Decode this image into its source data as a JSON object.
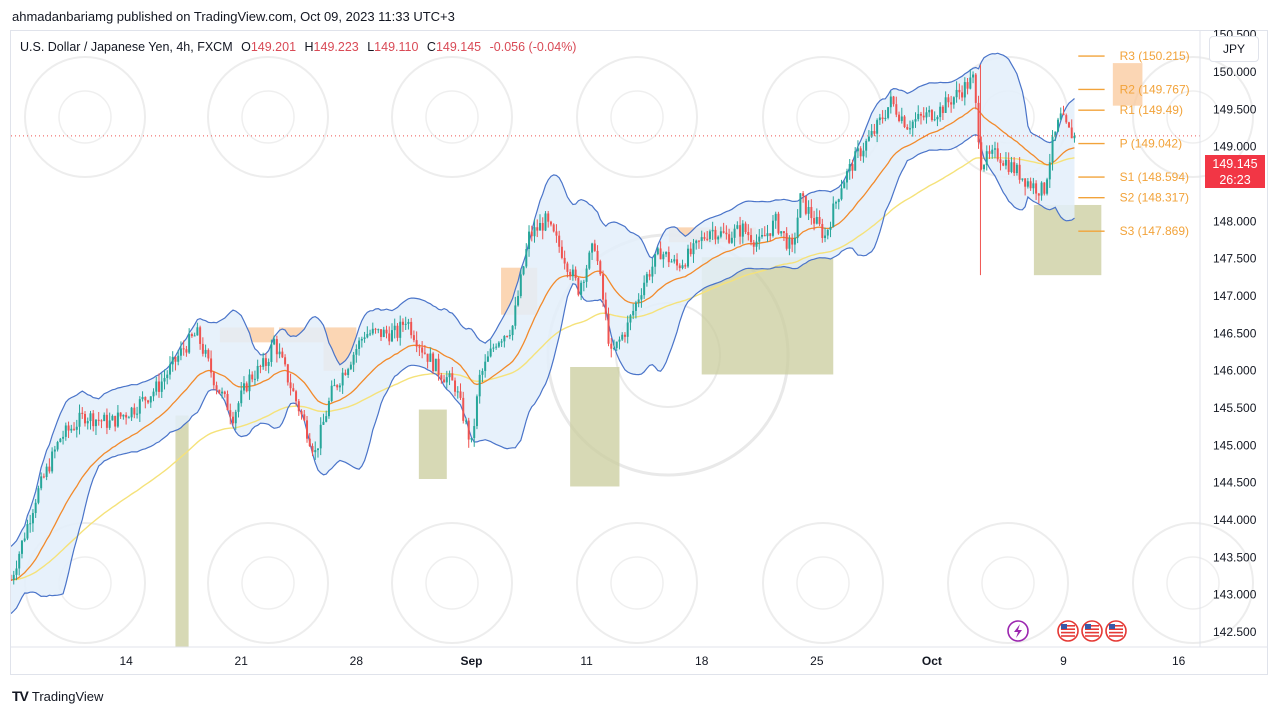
{
  "header": {
    "published_line": "ahmadanbariamg published on TradingView.com, Oct 09, 2023 11:33 UTC+3"
  },
  "legend": {
    "symbol": "U.S. Dollar / Japanese Yen, 4h, FXCM",
    "open_label": "O",
    "open": "149.201",
    "high_label": "H",
    "high": "149.223",
    "low_label": "L",
    "low": "149.110",
    "close_label": "C",
    "close": "149.145",
    "change": "-0.056 (-0.04%)"
  },
  "currency_button": "JPY",
  "price_tag": {
    "price": "149.145",
    "countdown": "26:23"
  },
  "footer": {
    "brand": "TradingView",
    "logo": "TV"
  },
  "colors": {
    "up": "#26a69a",
    "down": "#ef5350",
    "band": "#4a74c9",
    "band_fill": "#e3effa",
    "ema_orange": "#f28a2b",
    "ema_yellow": "#f5e27a",
    "pivot": "#f2a33a",
    "supply": "#f9c89b",
    "demand": "#c9cc9c",
    "price_tag": "#f23645"
  },
  "chart_data": {
    "type": "candlestick",
    "y_ticks": [
      "150.500",
      "150.000",
      "149.500",
      "149.000",
      "148.500",
      "148.000",
      "147.500",
      "147.000",
      "146.500",
      "146.000",
      "145.500",
      "145.000",
      "144.500",
      "144.000",
      "143.500",
      "143.000",
      "142.500"
    ],
    "x_ticks": [
      {
        "label": "14",
        "day": 14,
        "bold": false
      },
      {
        "label": "21",
        "day": 21,
        "bold": false
      },
      {
        "label": "28",
        "day": 28,
        "bold": false
      },
      {
        "label": "Sep",
        "day": 35,
        "bold": true
      },
      {
        "label": "11",
        "day": 42,
        "bold": false
      },
      {
        "label": "18",
        "day": 49,
        "bold": false
      },
      {
        "label": "25",
        "day": 56,
        "bold": false
      },
      {
        "label": "Oct",
        "day": 63,
        "bold": true
      },
      {
        "label": "9",
        "day": 71,
        "bold": false
      },
      {
        "label": "16",
        "day": 78,
        "bold": false
      }
    ],
    "ylim": [
      142.3,
      150.55
    ],
    "pivots": [
      {
        "label": "R3 (150.215)",
        "value": 150.215
      },
      {
        "label": "R2 (149.767)",
        "value": 149.767
      },
      {
        "label": "R1 (149.49)",
        "value": 149.49
      },
      {
        "label": "P (149.042)",
        "value": 149.042
      },
      {
        "label": "S1 (148.594)",
        "value": 148.594
      },
      {
        "label": "S2 (148.317)",
        "value": 148.317
      },
      {
        "label": "S3 (147.869)",
        "value": 147.869
      }
    ],
    "last_price": 149.145,
    "price_path": [
      [
        7.0,
        143.2
      ],
      [
        8.5,
        144.3
      ],
      [
        10.0,
        145.1
      ],
      [
        11.5,
        145.4
      ],
      [
        13.0,
        145.3
      ],
      [
        14.5,
        145.5
      ],
      [
        16.0,
        145.8
      ],
      [
        17.5,
        146.3
      ],
      [
        18.3,
        146.5
      ],
      [
        19.5,
        145.8
      ],
      [
        20.5,
        145.4
      ],
      [
        21.5,
        145.9
      ],
      [
        22.5,
        146.1
      ],
      [
        23.0,
        146.4
      ],
      [
        24.0,
        145.8
      ],
      [
        25.5,
        144.9
      ],
      [
        26.5,
        145.7
      ],
      [
        27.5,
        146.1
      ],
      [
        28.5,
        146.5
      ],
      [
        29.5,
        146.5
      ],
      [
        30.5,
        146.5
      ],
      [
        31.0,
        146.7
      ],
      [
        32.0,
        146.3
      ],
      [
        33.0,
        146.0
      ],
      [
        34.0,
        145.8
      ],
      [
        35.0,
        145.0
      ],
      [
        35.5,
        145.9
      ],
      [
        36.5,
        146.4
      ],
      [
        37.5,
        146.6
      ],
      [
        38.5,
        147.8
      ],
      [
        39.5,
        148.0
      ],
      [
        40.5,
        147.6
      ],
      [
        41.5,
        147.1
      ],
      [
        42.5,
        147.7
      ],
      [
        43.5,
        146.2
      ],
      [
        44.5,
        146.6
      ],
      [
        45.5,
        147.2
      ],
      [
        46.5,
        147.6
      ],
      [
        47.5,
        147.4
      ],
      [
        48.5,
        147.6
      ],
      [
        49.5,
        147.9
      ],
      [
        50.5,
        147.8
      ],
      [
        51.5,
        147.9
      ],
      [
        52.5,
        147.7
      ],
      [
        53.5,
        148.0
      ],
      [
        54.5,
        147.6
      ],
      [
        55.0,
        148.3
      ],
      [
        56.5,
        147.8
      ],
      [
        57.5,
        148.5
      ],
      [
        58.5,
        148.9
      ],
      [
        59.5,
        149.2
      ],
      [
        60.5,
        149.6
      ],
      [
        61.5,
        149.3
      ],
      [
        62.5,
        149.4
      ],
      [
        63.5,
        149.5
      ],
      [
        64.5,
        149.7
      ],
      [
        65.5,
        149.9
      ],
      [
        66.0,
        148.8
      ],
      [
        67.0,
        148.9
      ],
      [
        68.0,
        148.7
      ],
      [
        69.0,
        148.5
      ],
      [
        69.8,
        148.4
      ],
      [
        70.3,
        149.0
      ],
      [
        70.8,
        149.4
      ],
      [
        71.3,
        149.2
      ],
      [
        71.7,
        149.15
      ]
    ],
    "zones": [
      {
        "type": "supply",
        "x": [
          19.7,
          23.0
        ],
        "y": [
          146.38,
          146.58
        ]
      },
      {
        "type": "supply",
        "x": [
          23.3,
          26.0
        ],
        "y": [
          146.38,
          146.58
        ]
      },
      {
        "type": "supply",
        "x": [
          26.0,
          28.0
        ],
        "y": [
          146.0,
          146.58
        ]
      },
      {
        "type": "supply",
        "x": [
          36.8,
          39.0
        ],
        "y": [
          146.75,
          147.38
        ]
      },
      {
        "type": "supply",
        "x": [
          47.0,
          52.3
        ],
        "y": [
          147.72,
          147.92
        ]
      },
      {
        "type": "supply",
        "x": [
          74.0,
          75.8
        ],
        "y": [
          149.55,
          150.12
        ]
      },
      {
        "type": "demand",
        "x": [
          17.0,
          17.8
        ],
        "y": [
          142.3,
          145.4
        ]
      },
      {
        "type": "demand",
        "x": [
          31.8,
          33.5
        ],
        "y": [
          144.55,
          145.48
        ]
      },
      {
        "type": "demand",
        "x": [
          41.0,
          44.0
        ],
        "y": [
          144.45,
          146.05
        ]
      },
      {
        "type": "demand",
        "x": [
          49.0,
          57.0
        ],
        "y": [
          145.95,
          147.52
        ]
      },
      {
        "type": "demand",
        "x": [
          69.2,
          73.3
        ],
        "y": [
          147.28,
          148.22
        ]
      }
    ]
  }
}
